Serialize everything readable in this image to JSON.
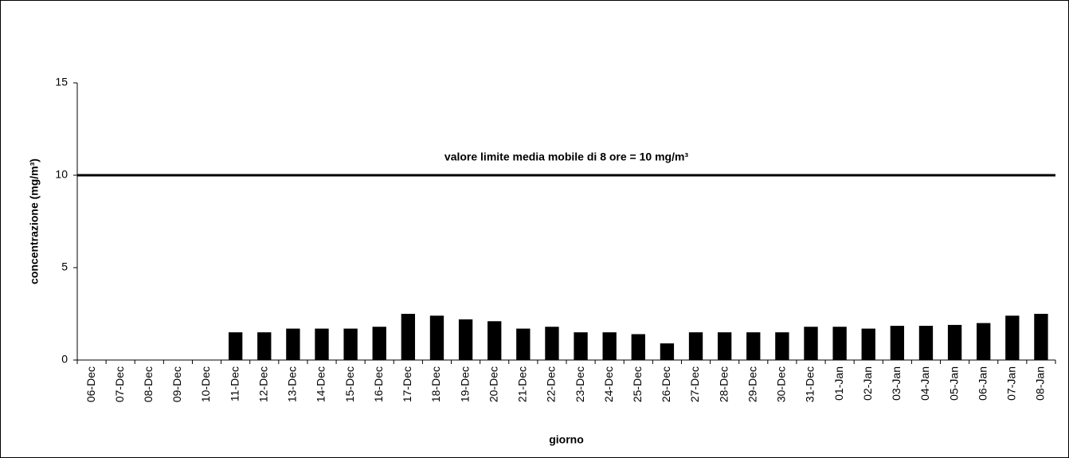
{
  "chart_data": {
    "type": "bar",
    "y_label": "concentrazione (mg/m³)",
    "x_label": "giorno",
    "annotation": "valore limite media mobile di 8 ore = 10 mg/m³",
    "reference_line": 10,
    "categories": [
      "06-Dec",
      "07-Dec",
      "08-Dec",
      "09-Dec",
      "10-Dec",
      "11-Dec",
      "12-Dec",
      "13-Dec",
      "14-Dec",
      "15-Dec",
      "16-Dec",
      "17-Dec",
      "18-Dec",
      "19-Dec",
      "20-Dec",
      "21-Dec",
      "22-Dec",
      "23-Dec",
      "24-Dec",
      "25-Dec",
      "26-Dec",
      "27-Dec",
      "28-Dec",
      "29-Dec",
      "30-Dec",
      "31-Dec",
      "01-Jan",
      "02-Jan",
      "03-Jan",
      "04-Jan",
      "05-Jan",
      "06-Jan",
      "07-Jan",
      "08-Jan"
    ],
    "values": [
      null,
      null,
      null,
      null,
      null,
      1.5,
      1.5,
      1.7,
      1.7,
      1.7,
      1.8,
      2.5,
      2.4,
      2.2,
      2.1,
      1.7,
      1.8,
      1.5,
      1.5,
      1.4,
      0.9,
      1.5,
      1.5,
      1.5,
      1.5,
      1.8,
      1.8,
      1.7,
      1.85,
      1.85,
      1.9,
      2.0,
      2.4,
      2.5
    ],
    "color": "#000000",
    "ylim": [
      0,
      15
    ],
    "yticks": [
      0,
      5,
      10,
      15
    ],
    "grid": false
  }
}
